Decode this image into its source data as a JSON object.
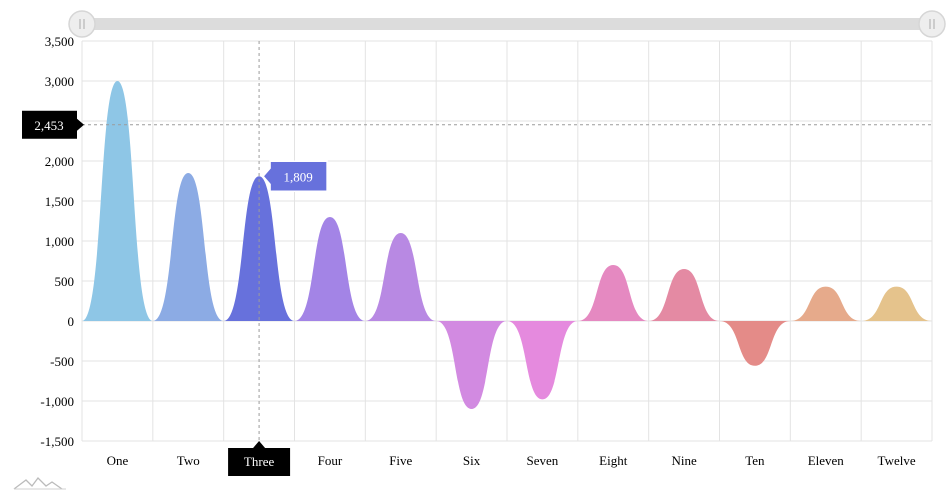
{
  "chart_data": {
    "type": "area",
    "categories": [
      "One",
      "Two",
      "Three",
      "Four",
      "Five",
      "Six",
      "Seven",
      "Eight",
      "Nine",
      "Ten",
      "Eleven",
      "Twelve"
    ],
    "values": [
      3000,
      1850,
      1809,
      1300,
      1100,
      -1100,
      -980,
      700,
      650,
      -560,
      430,
      430
    ],
    "colors": [
      "#8ec6e6",
      "#8cabe4",
      "#6771dc",
      "#a384e6",
      "#b889e3",
      "#d28ae1",
      "#e58ade",
      "#e589c1",
      "#e48aa3",
      "#e48b88",
      "#e6aa8b",
      "#e5c38c"
    ],
    "y_ticks": [
      "3,500",
      "3,000",
      "2,500",
      "2,000",
      "1,500",
      "1,000",
      "500",
      "0",
      "-500",
      "-1,000",
      "-1,500"
    ],
    "ylim": [
      -1500,
      3500
    ],
    "grid": true,
    "legend": "none",
    "cursor": {
      "category": "Three",
      "y_value_label": "2,453",
      "y_value": 2453,
      "tooltip_value": "1,809",
      "tooltip_color": "#6771dc"
    },
    "scrollbar": {
      "start": 0,
      "end": 1
    }
  }
}
